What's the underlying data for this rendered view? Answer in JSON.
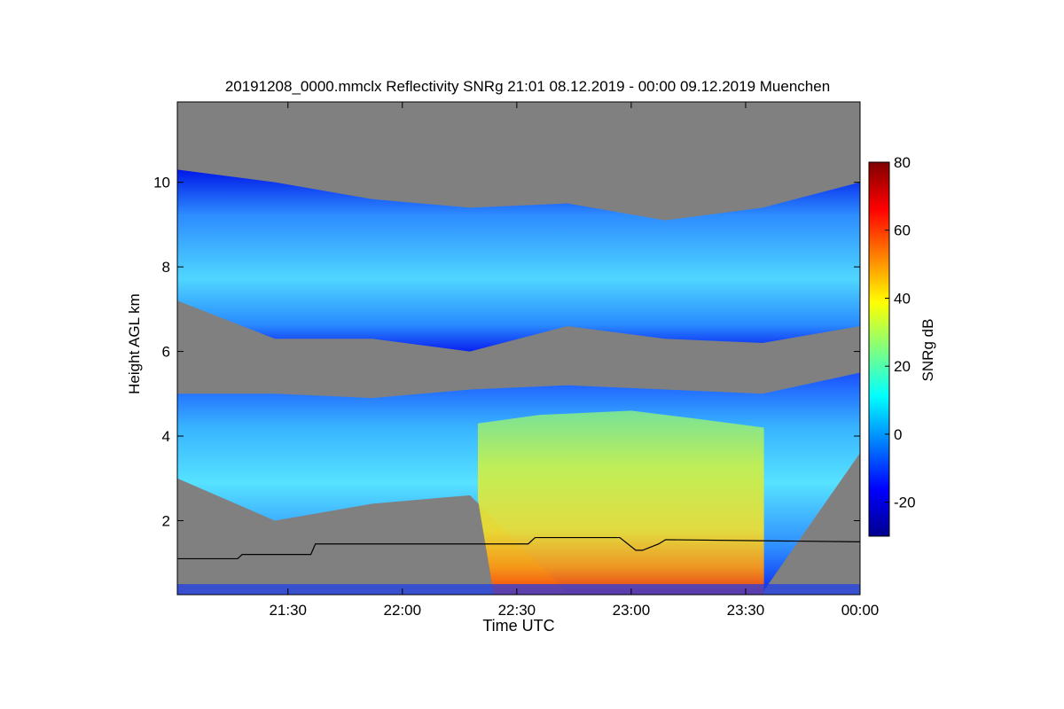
{
  "chart_data": {
    "type": "heatmap",
    "title": "20191208_0000.mmclx Reflectivity SNRg   21:01 08.12.2019 - 00:00 09.12.2019 Muenchen",
    "xlabel": "Time UTC",
    "ylabel": "Height AGL km",
    "colorbar_label": "SNRg dB",
    "x_range_hours": [
      21.0167,
      24.0
    ],
    "x_ticks": [
      {
        "value": 21.5,
        "label": "21:30"
      },
      {
        "value": 22.0,
        "label": "22:00"
      },
      {
        "value": 22.5,
        "label": "22:30"
      },
      {
        "value": 23.0,
        "label": "23:00"
      },
      {
        "value": 23.5,
        "label": "23:30"
      },
      {
        "value": 24.0,
        "label": "00:00"
      }
    ],
    "y_range_km": [
      0.25,
      11.9
    ],
    "y_ticks": [
      {
        "value": 2,
        "label": "2"
      },
      {
        "value": 4,
        "label": "4"
      },
      {
        "value": 6,
        "label": "6"
      },
      {
        "value": 8,
        "label": "8"
      },
      {
        "value": 10,
        "label": "10"
      }
    ],
    "colorbar_range_db": [
      -30,
      80
    ],
    "colorbar_ticks": [
      {
        "value": -20,
        "label": "-20"
      },
      {
        "value": 0,
        "label": "0"
      },
      {
        "value": 20,
        "label": "20"
      },
      {
        "value": 40,
        "label": "40"
      },
      {
        "value": 60,
        "label": "60"
      },
      {
        "value": 80,
        "label": "80"
      }
    ],
    "colormap": "jet",
    "background_color": "#808080",
    "cloud_layers": [
      {
        "name": "upper",
        "base_km": [
          7.2,
          6.3,
          6.3,
          6.0,
          6.6,
          6.3,
          6.2,
          6.6
        ],
        "top_km": [
          10.3,
          10.0,
          9.6,
          9.4,
          9.5,
          9.1,
          9.4,
          10.0
        ],
        "snr_db": 5
      },
      {
        "name": "middle",
        "base_km": [
          3.0,
          2.0,
          2.4,
          2.6,
          0.3,
          0.3,
          0.3,
          3.6
        ],
        "top_km": [
          5.0,
          5.0,
          4.9,
          5.1,
          5.2,
          5.1,
          5.0,
          5.5
        ],
        "snr_db": 10
      }
    ],
    "line_series": {
      "color": "#000000",
      "x_hours": [
        21.0167,
        21.28,
        21.3,
        21.6,
        21.62,
        22.55,
        22.58,
        22.95,
        23.02,
        23.05,
        23.12,
        23.15,
        24.0
      ],
      "y_km": [
        1.1,
        1.1,
        1.2,
        1.2,
        1.45,
        1.45,
        1.6,
        1.6,
        1.3,
        1.3,
        1.45,
        1.55,
        1.5
      ]
    }
  }
}
